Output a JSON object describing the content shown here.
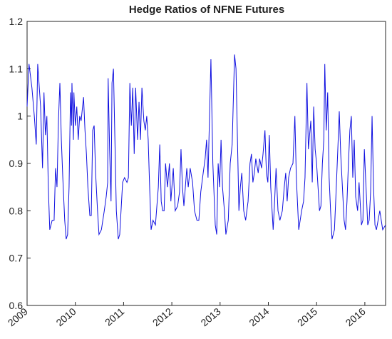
{
  "chart_data": {
    "type": "line",
    "title": "Hedge Ratios of NFNE Futures",
    "x": [
      2009.0,
      2009.04,
      2009.1,
      2009.15,
      2009.19,
      2009.22,
      2009.28,
      2009.32,
      2009.35,
      2009.38,
      2009.41,
      2009.44,
      2009.47,
      2009.52,
      2009.56,
      2009.59,
      2009.62,
      2009.65,
      2009.68,
      2009.71,
      2009.74,
      2009.78,
      2009.81,
      2009.84,
      2009.87,
      2009.9,
      2009.92,
      2009.93,
      2009.96,
      2009.97,
      2010.0,
      2010.03,
      2010.06,
      2010.09,
      2010.12,
      2010.17,
      2010.2,
      2010.23,
      2010.26,
      2010.3,
      2010.33,
      2010.36,
      2010.39,
      2010.42,
      2010.46,
      2010.49,
      2010.54,
      2010.6,
      2010.64,
      2010.67,
      2010.68,
      2010.71,
      2010.74,
      2010.76,
      2010.79,
      2010.82,
      2010.85,
      2010.89,
      2010.92,
      2010.98,
      2011.02,
      2011.07,
      2011.1,
      2011.13,
      2011.16,
      2011.19,
      2011.22,
      2011.25,
      2011.29,
      2011.32,
      2011.35,
      2011.38,
      2011.42,
      2011.45,
      2011.48,
      2011.51,
      2011.54,
      2011.57,
      2011.61,
      2011.66,
      2011.72,
      2011.75,
      2011.78,
      2011.81,
      2011.84,
      2011.87,
      2011.91,
      2011.95,
      2011.98,
      2012.03,
      2012.07,
      2012.12,
      2012.16,
      2012.19,
      2012.22,
      2012.25,
      2012.31,
      2012.34,
      2012.38,
      2012.43,
      2012.47,
      2012.52,
      2012.56,
      2012.6,
      2012.65,
      2012.69,
      2012.72,
      2012.75,
      2012.81,
      2012.85,
      2012.9,
      2012.93,
      2012.96,
      2012.99,
      2013.02,
      2013.05,
      2013.09,
      2013.12,
      2013.17,
      2013.21,
      2013.25,
      2013.3,
      2013.33,
      2013.36,
      2013.39,
      2013.42,
      2013.45,
      2013.49,
      2013.53,
      2013.58,
      2013.62,
      2013.65,
      2013.68,
      2013.71,
      2013.74,
      2013.79,
      2013.82,
      2013.86,
      2013.89,
      2013.93,
      2013.96,
      2013.99,
      2014.02,
      2014.05,
      2014.1,
      2014.13,
      2014.16,
      2014.2,
      2014.24,
      2014.29,
      2014.33,
      2014.36,
      2014.39,
      2014.42,
      2014.46,
      2014.51,
      2014.55,
      2014.58,
      2014.63,
      2014.69,
      2014.73,
      2014.76,
      2014.8,
      2014.83,
      2014.88,
      2014.91,
      2014.94,
      2014.97,
      2015.0,
      2015.03,
      2015.06,
      2015.09,
      2015.12,
      2015.15,
      2015.17,
      2015.2,
      2015.23,
      2015.26,
      2015.29,
      2015.32,
      2015.37,
      2015.4,
      2015.44,
      2015.47,
      2015.5,
      2015.53,
      2015.57,
      2015.6,
      2015.63,
      2015.66,
      2015.69,
      2015.72,
      2015.75,
      2015.78,
      2015.81,
      2015.85,
      2015.88,
      2015.93,
      2015.96,
      2015.99,
      2016.02,
      2016.06,
      2016.09,
      2016.12,
      2016.15,
      2016.18,
      2016.21,
      2016.24,
      2016.31,
      2016.37,
      2016.43
    ],
    "series": [
      {
        "name": "Hedge Ratio",
        "color": "#1010e0",
        "values": [
          1.02,
          1.11,
          1.06,
          1.0,
          0.94,
          1.11,
          1.02,
          0.89,
          1.05,
          0.96,
          1.0,
          0.85,
          0.76,
          0.78,
          0.78,
          0.89,
          0.85,
          0.99,
          1.07,
          0.95,
          0.87,
          0.78,
          0.74,
          0.75,
          0.85,
          1.05,
          0.98,
          1.07,
          0.95,
          1.05,
          0.98,
          1.02,
          0.95,
          1.0,
          0.99,
          1.04,
          0.97,
          0.92,
          0.85,
          0.79,
          0.79,
          0.97,
          0.98,
          0.88,
          0.8,
          0.75,
          0.76,
          0.8,
          0.83,
          0.86,
          1.08,
          0.93,
          0.82,
          1.07,
          1.1,
          0.95,
          0.8,
          0.74,
          0.75,
          0.86,
          0.87,
          0.86,
          0.87,
          1.07,
          0.98,
          1.06,
          0.92,
          1.06,
          0.95,
          1.03,
          0.95,
          1.06,
          0.99,
          0.97,
          1.0,
          0.95,
          0.85,
          0.76,
          0.78,
          0.77,
          0.85,
          0.94,
          0.82,
          0.8,
          0.8,
          0.9,
          0.85,
          0.9,
          0.82,
          0.89,
          0.8,
          0.81,
          0.84,
          0.93,
          0.85,
          0.81,
          0.89,
          0.85,
          0.89,
          0.86,
          0.8,
          0.78,
          0.78,
          0.84,
          0.88,
          0.91,
          0.95,
          0.87,
          1.12,
          0.9,
          0.77,
          0.75,
          0.9,
          0.85,
          0.95,
          0.85,
          0.8,
          0.75,
          0.78,
          0.9,
          0.94,
          1.13,
          1.1,
          0.95,
          0.8,
          0.85,
          0.88,
          0.8,
          0.78,
          0.82,
          0.9,
          0.92,
          0.86,
          0.88,
          0.91,
          0.88,
          0.91,
          0.89,
          0.92,
          0.97,
          0.88,
          0.86,
          0.96,
          0.85,
          0.76,
          0.82,
          0.89,
          0.8,
          0.78,
          0.8,
          0.85,
          0.88,
          0.82,
          0.87,
          0.89,
          0.9,
          1.0,
          0.87,
          0.76,
          0.8,
          0.82,
          0.87,
          1.07,
          0.93,
          0.99,
          0.86,
          1.02,
          0.93,
          0.9,
          0.85,
          0.8,
          0.81,
          0.9,
          0.95,
          1.11,
          0.97,
          1.05,
          0.87,
          0.8,
          0.74,
          0.76,
          0.83,
          0.93,
          1.01,
          0.92,
          0.86,
          0.78,
          0.76,
          0.82,
          0.9,
          0.97,
          1.0,
          0.87,
          0.95,
          0.83,
          0.8,
          0.86,
          0.77,
          0.78,
          0.93,
          0.86,
          0.77,
          0.78,
          0.84,
          1.0,
          0.85,
          0.77,
          0.76,
          0.8,
          0.76,
          0.77
        ]
      }
    ],
    "xlim": [
      2009,
      2016.43
    ],
    "xticks": [
      2009,
      2010,
      2011,
      2012,
      2013,
      2014,
      2015,
      2016
    ],
    "ylim": [
      0.6,
      1.2
    ],
    "yticks": [
      0.6,
      0.7,
      0.8,
      0.9,
      1,
      1.1,
      1.2
    ],
    "grid": false
  }
}
